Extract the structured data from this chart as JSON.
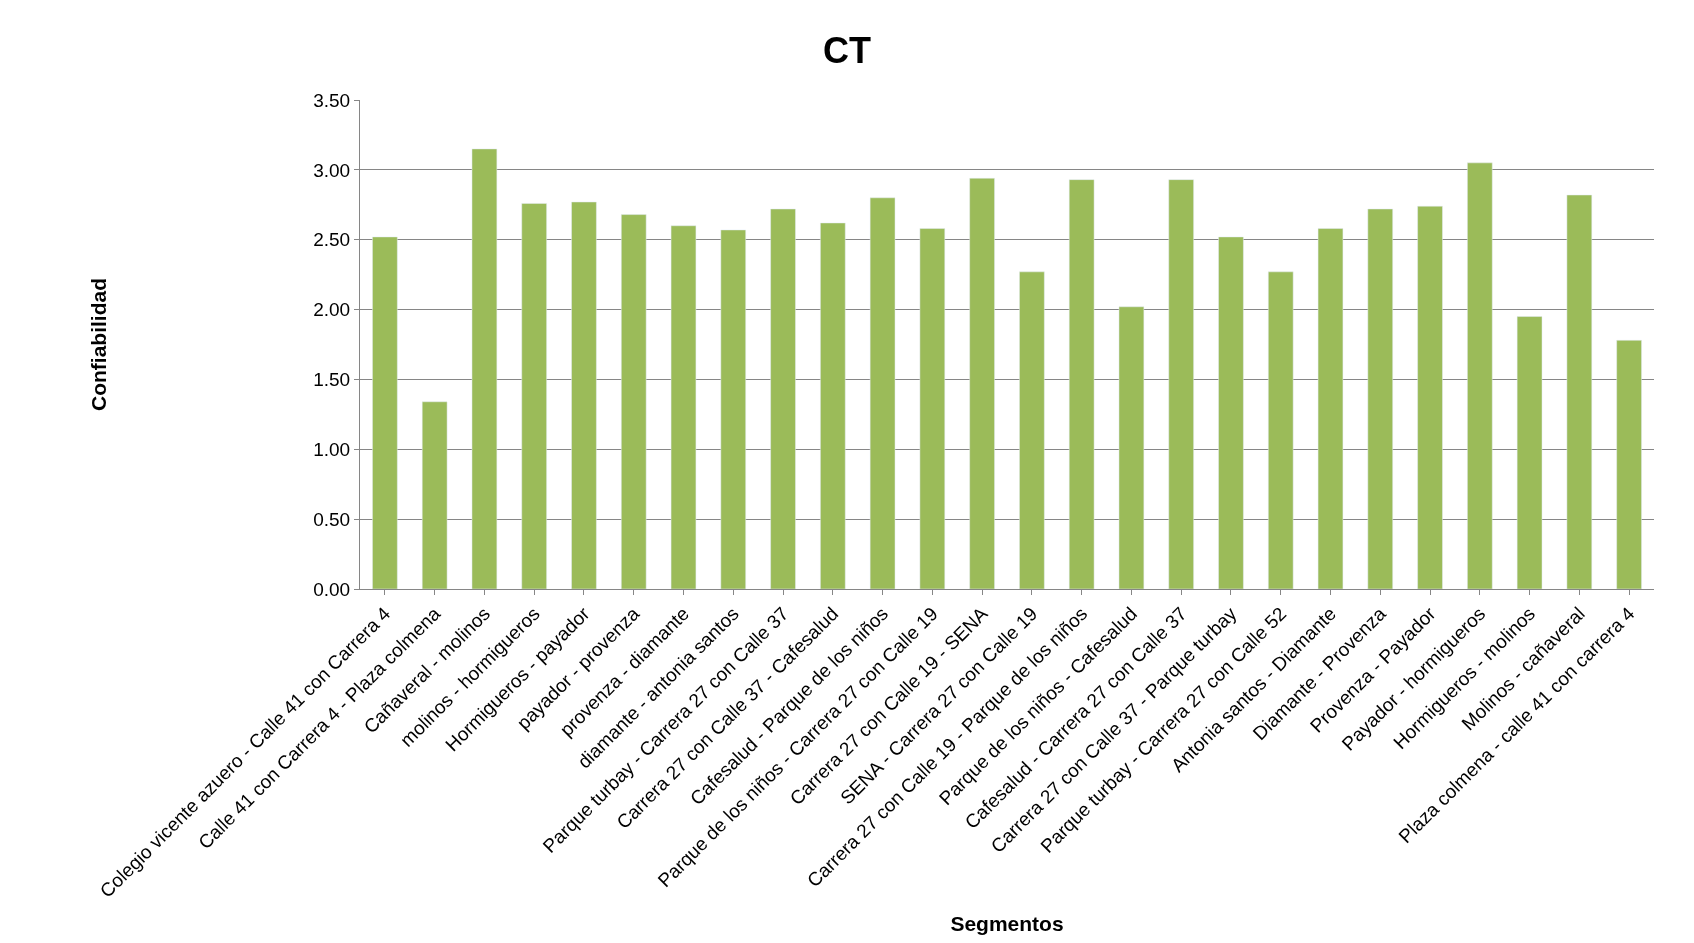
{
  "chart_data": {
    "type": "bar",
    "title": "CT",
    "xlabel": "Segmentos",
    "ylabel": "Confiabilidad",
    "categories": [
      "Colegio vicente azuero - Calle 41 con Carrera 4",
      "Calle 41 con Carrera 4 - Plaza colmena",
      "Cañaveral - molinos",
      "molinos - hormigueros",
      "Hormigueros - payador",
      "payador - provenza",
      "provenza - diamante",
      "diamante - antonia santos",
      "Parque turbay - Carrera 27 con Calle 37",
      "Carrera 27 con Calle 37 - Cafesalud",
      "Cafesalud - Parque de los niños",
      "Parque de los niños - Carrera 27 con Calle 19",
      "Carrera 27 con Calle 19 - SENA",
      "SENA - Carrera 27 con Calle 19",
      "Carrera 27 con Calle 19 - Parque de los niños",
      "Parque de los niños - Cafesalud",
      "Cafesalud - Carrera 27 con Calle 37",
      "Carrera 27 con Calle 37 - Parque turbay",
      "Parque turbay - Carrera 27 con Calle 52",
      "Antonia santos - Diamante",
      "Diamante - Provenza",
      "Provenza - Payador",
      "Payador - hormigueros",
      "Hormigueros - molinos",
      "Molinos - cañaveral",
      "Plaza colmena - calle 41 con carrera 4"
    ],
    "values": [
      2.52,
      1.34,
      3.15,
      2.76,
      2.77,
      2.68,
      2.6,
      2.57,
      2.72,
      2.62,
      2.8,
      2.58,
      2.94,
      2.27,
      2.93,
      2.02,
      2.93,
      2.52,
      2.27,
      2.58,
      2.72,
      2.74,
      3.05,
      1.95,
      2.82,
      1.78
    ],
    "color": "#9bbb59",
    "ylim": [
      0,
      3.5
    ],
    "yticks": [
      {
        "value": 0,
        "label": "0.00"
      },
      {
        "value": 0.5,
        "label": "0.50"
      },
      {
        "value": 1,
        "label": "1.00"
      },
      {
        "value": 1.5,
        "label": "1.50"
      },
      {
        "value": 2,
        "label": "2.00"
      },
      {
        "value": 2.5,
        "label": "2.50"
      },
      {
        "value": 3,
        "label": "3.00"
      },
      {
        "value": 3.5,
        "label": "3.50"
      }
    ],
    "grid": "y",
    "legend": false
  }
}
